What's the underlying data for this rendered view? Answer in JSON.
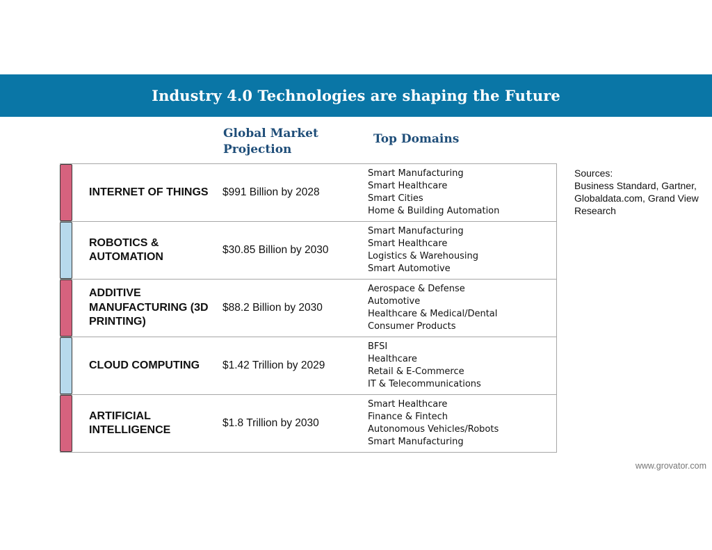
{
  "banner": {
    "title": "Industry 4.0 Technologies are shaping the Future"
  },
  "headers": {
    "market": "Global Market Projection",
    "domains": "Top Domains"
  },
  "colors": {
    "banner": "#0a76a6",
    "header_text": "#1f4e79",
    "accent_pink": "#d6627e",
    "accent_blue": "#b7d9ec"
  },
  "rows": [
    {
      "technology": "INTERNET OF THINGS",
      "market": "$991 Billion by 2028",
      "accent": "pink",
      "domains": [
        "Smart Manufacturing",
        "Smart Healthcare",
        "Smart Cities",
        "Home & Building Automation"
      ]
    },
    {
      "technology": "ROBOTICS & AUTOMATION",
      "market": "$30.85 Billion by 2030",
      "accent": "blue",
      "domains": [
        "Smart Manufacturing",
        "Smart Healthcare",
        "Logistics & Warehousing",
        "Smart Automotive"
      ]
    },
    {
      "technology": "ADDITIVE MANUFACTURING (3D PRINTING)",
      "market": "$88.2 Billion by 2030",
      "accent": "pink",
      "domains": [
        "Aerospace & Defense",
        "Automotive",
        "Healthcare & Medical/Dental",
        "Consumer Products"
      ]
    },
    {
      "technology": "CLOUD COMPUTING",
      "market": "$1.42 Trillion by 2029",
      "accent": "blue",
      "domains": [
        "BFSI",
        "Healthcare",
        "Retail & E-Commerce",
        "IT & Telecommunications"
      ]
    },
    {
      "technology": "ARTIFICIAL INTELLIGENCE",
      "market": "$1.8 Trillion by 2030",
      "accent": "pink",
      "domains": [
        "Smart Healthcare",
        "Finance & Fintech",
        "Autonomous Vehicles/Robots",
        "Smart Manufacturing"
      ]
    }
  ],
  "sources": {
    "label": "Sources:",
    "text": "Business Standard, Gartner, Globaldata.com, Grand View Research"
  },
  "footer": {
    "website": "www.grovator.com"
  }
}
